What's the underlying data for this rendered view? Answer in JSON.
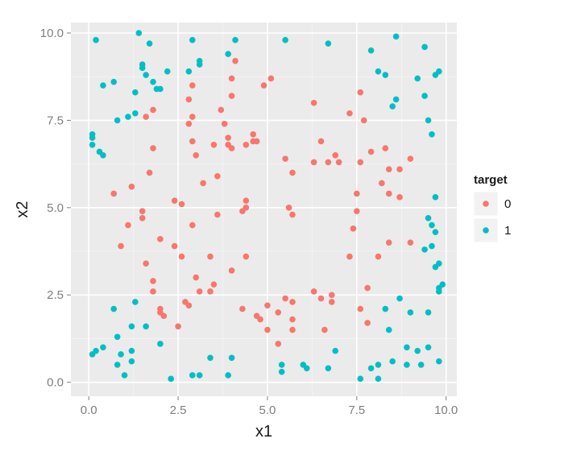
{
  "chart_data": {
    "type": "scatter",
    "title": "",
    "xlabel": "x1",
    "ylabel": "x2",
    "xlim": [
      -0.5,
      10.3
    ],
    "ylim": [
      -0.4,
      10.3
    ],
    "xticks": [
      0,
      2.5,
      5,
      7.5,
      10
    ],
    "xtick_labels": [
      "0.0",
      "2.5",
      "5.0",
      "7.5",
      "10.0"
    ],
    "yticks": [
      0,
      2.5,
      5,
      7.5,
      10
    ],
    "ytick_labels": [
      "0.0",
      "2.5",
      "5.0",
      "7.5",
      "10.0"
    ],
    "grid": true,
    "panel_background": "#ebebeb",
    "legend": {
      "title": "target",
      "position": "right"
    },
    "series": [
      {
        "name": "0",
        "color": "#f8766d",
        "points": [
          [
            1.8,
            7.8
          ],
          [
            1.7,
            6.0
          ],
          [
            1.8,
            6.7
          ],
          [
            1.6,
            7.6
          ],
          [
            0.7,
            5.4
          ],
          [
            1.2,
            5.6
          ],
          [
            1.1,
            4.5
          ],
          [
            1.5,
            4.9
          ],
          [
            1.5,
            4.7
          ],
          [
            0.9,
            3.9
          ],
          [
            1.6,
            3.4
          ],
          [
            1.8,
            2.9
          ],
          [
            1.8,
            2.6
          ],
          [
            2.0,
            4.1
          ],
          [
            2.0,
            2.1
          ],
          [
            2.0,
            2.0
          ],
          [
            2.1,
            1.9
          ],
          [
            2.4,
            3.9
          ],
          [
            2.5,
            1.6
          ],
          [
            2.4,
            5.2
          ],
          [
            2.6,
            5.1
          ],
          [
            2.6,
            3.6
          ],
          [
            2.7,
            2.3
          ],
          [
            2.8,
            2.2
          ],
          [
            2.8,
            7.4
          ],
          [
            2.9,
            8.5
          ],
          [
            2.8,
            8.1
          ],
          [
            2.9,
            7.6
          ],
          [
            2.9,
            6.9
          ],
          [
            2.9,
            4.5
          ],
          [
            3.0,
            6.5
          ],
          [
            3.0,
            3.0
          ],
          [
            3.1,
            2.6
          ],
          [
            3.2,
            5.7
          ],
          [
            3.4,
            2.6
          ],
          [
            3.4,
            3.6
          ],
          [
            3.5,
            2.8
          ],
          [
            3.5,
            6.8
          ],
          [
            3.6,
            5.9
          ],
          [
            3.6,
            4.8
          ],
          [
            3.7,
            7.8
          ],
          [
            3.8,
            7.4
          ],
          [
            3.9,
            7.0
          ],
          [
            3.9,
            6.8
          ],
          [
            4.0,
            8.7
          ],
          [
            4.0,
            8.2
          ],
          [
            4.1,
            9.2
          ],
          [
            4.0,
            6.7
          ],
          [
            4.0,
            3.2
          ],
          [
            4.3,
            4.9
          ],
          [
            4.4,
            5.0
          ],
          [
            4.4,
            5.2
          ],
          [
            4.4,
            6.8
          ],
          [
            4.4,
            3.6
          ],
          [
            4.3,
            2.1
          ],
          [
            4.6,
            6.9
          ],
          [
            4.6,
            7.1
          ],
          [
            4.7,
            6.9
          ],
          [
            4.7,
            1.9
          ],
          [
            4.8,
            1.8
          ],
          [
            4.9,
            8.5
          ],
          [
            5.0,
            2.2
          ],
          [
            5.0,
            1.5
          ],
          [
            5.1,
            8.7
          ],
          [
            5.3,
            2.0
          ],
          [
            5.3,
            1.1
          ],
          [
            5.5,
            6.4
          ],
          [
            5.5,
            2.4
          ],
          [
            5.6,
            5.0
          ],
          [
            5.7,
            4.8
          ],
          [
            5.7,
            6.0
          ],
          [
            5.7,
            2.3
          ],
          [
            5.7,
            1.8
          ],
          [
            5.7,
            1.5
          ],
          [
            6.3,
            8.0
          ],
          [
            6.3,
            6.3
          ],
          [
            6.3,
            2.6
          ],
          [
            6.5,
            6.9
          ],
          [
            6.5,
            2.4
          ],
          [
            6.6,
            1.5
          ],
          [
            6.7,
            6.3
          ],
          [
            6.8,
            2.5
          ],
          [
            6.8,
            2.3
          ],
          [
            6.9,
            6.5
          ],
          [
            7.0,
            6.3
          ],
          [
            7.3,
            7.7
          ],
          [
            7.3,
            3.6
          ],
          [
            7.4,
            4.4
          ],
          [
            7.5,
            5.4
          ],
          [
            7.6,
            8.3
          ],
          [
            7.5,
            4.9
          ],
          [
            7.6,
            6.3
          ],
          [
            7.7,
            7.5
          ],
          [
            7.6,
            2.1
          ],
          [
            7.8,
            2.7
          ],
          [
            7.8,
            1.7
          ],
          [
            7.9,
            6.6
          ],
          [
            8.1,
            3.6
          ],
          [
            8.2,
            5.7
          ],
          [
            8.3,
            6.7
          ],
          [
            8.4,
            6.1
          ],
          [
            8.4,
            5.4
          ],
          [
            8.4,
            4.0
          ],
          [
            8.7,
            6.1
          ],
          [
            8.7,
            5.3
          ],
          [
            9.0,
            6.4
          ],
          [
            9.0,
            4.0
          ]
        ]
      },
      {
        "name": "1",
        "color": "#00bfc4",
        "points": [
          [
            0.2,
            9.8
          ],
          [
            0.4,
            8.5
          ],
          [
            0.7,
            8.6
          ],
          [
            0.8,
            7.5
          ],
          [
            1.1,
            7.6
          ],
          [
            1.3,
            8.3
          ],
          [
            1.3,
            7.7
          ],
          [
            1.4,
            10.0
          ],
          [
            1.5,
            9.1
          ],
          [
            1.5,
            9.0
          ],
          [
            1.6,
            8.8
          ],
          [
            1.7,
            9.7
          ],
          [
            1.8,
            8.6
          ],
          [
            1.9,
            8.4
          ],
          [
            2.0,
            8.4
          ],
          [
            2.2,
            8.9
          ],
          [
            2.8,
            8.9
          ],
          [
            2.9,
            9.8
          ],
          [
            3.1,
            9.2
          ],
          [
            3.1,
            9.1
          ],
          [
            3.9,
            9.4
          ],
          [
            4.1,
            9.8
          ],
          [
            5.5,
            9.8
          ],
          [
            6.7,
            9.7
          ],
          [
            7.9,
            9.5
          ],
          [
            8.1,
            8.9
          ],
          [
            8.3,
            8.8
          ],
          [
            8.5,
            7.9
          ],
          [
            8.6,
            8.1
          ],
          [
            8.6,
            9.9
          ],
          [
            9.2,
            8.7
          ],
          [
            9.4,
            9.6
          ],
          [
            9.4,
            8.2
          ],
          [
            9.5,
            7.5
          ],
          [
            9.6,
            7.1
          ],
          [
            9.7,
            8.8
          ],
          [
            9.8,
            8.9
          ],
          [
            0.1,
            7.1
          ],
          [
            0.1,
            7.0
          ],
          [
            0.1,
            6.8
          ],
          [
            0.3,
            6.6
          ],
          [
            0.4,
            6.5
          ],
          [
            9.7,
            5.3
          ],
          [
            9.5,
            4.7
          ],
          [
            9.6,
            4.5
          ],
          [
            9.7,
            4.3
          ],
          [
            9.4,
            3.8
          ],
          [
            9.6,
            3.9
          ],
          [
            9.7,
            3.3
          ],
          [
            9.8,
            3.4
          ],
          [
            9.8,
            2.7
          ],
          [
            9.9,
            2.8
          ],
          [
            9.8,
            2.6
          ],
          [
            0.1,
            0.8
          ],
          [
            0.2,
            0.9
          ],
          [
            0.4,
            1.0
          ],
          [
            0.7,
            2.1
          ],
          [
            0.8,
            1.3
          ],
          [
            0.8,
            0.5
          ],
          [
            0.9,
            0.8
          ],
          [
            1.0,
            0.2
          ],
          [
            1.2,
            0.9
          ],
          [
            1.2,
            0.6
          ],
          [
            1.2,
            1.6
          ],
          [
            1.3,
            2.3
          ],
          [
            1.6,
            1.6
          ],
          [
            2.0,
            1.1
          ],
          [
            2.3,
            0.1
          ],
          [
            2.9,
            0.2
          ],
          [
            3.1,
            0.2
          ],
          [
            3.4,
            0.7
          ],
          [
            3.9,
            0.2
          ],
          [
            4.0,
            0.7
          ],
          [
            5.4,
            0.5
          ],
          [
            5.4,
            0.3
          ],
          [
            6.0,
            0.5
          ],
          [
            6.1,
            0.4
          ],
          [
            6.7,
            0.4
          ],
          [
            6.9,
            0.9
          ],
          [
            7.6,
            0.1
          ],
          [
            7.9,
            0.4
          ],
          [
            8.1,
            0.5
          ],
          [
            8.1,
            0.1
          ],
          [
            8.4,
            1.5
          ],
          [
            8.5,
            0.6
          ],
          [
            8.3,
            2.1
          ],
          [
            8.7,
            2.4
          ],
          [
            8.9,
            1.0
          ],
          [
            8.9,
            0.5
          ],
          [
            9.0,
            2.0
          ],
          [
            9.2,
            0.9
          ],
          [
            9.3,
            0.5
          ],
          [
            9.5,
            2.0
          ],
          [
            9.5,
            1.0
          ],
          [
            9.8,
            0.6
          ]
        ]
      }
    ]
  }
}
